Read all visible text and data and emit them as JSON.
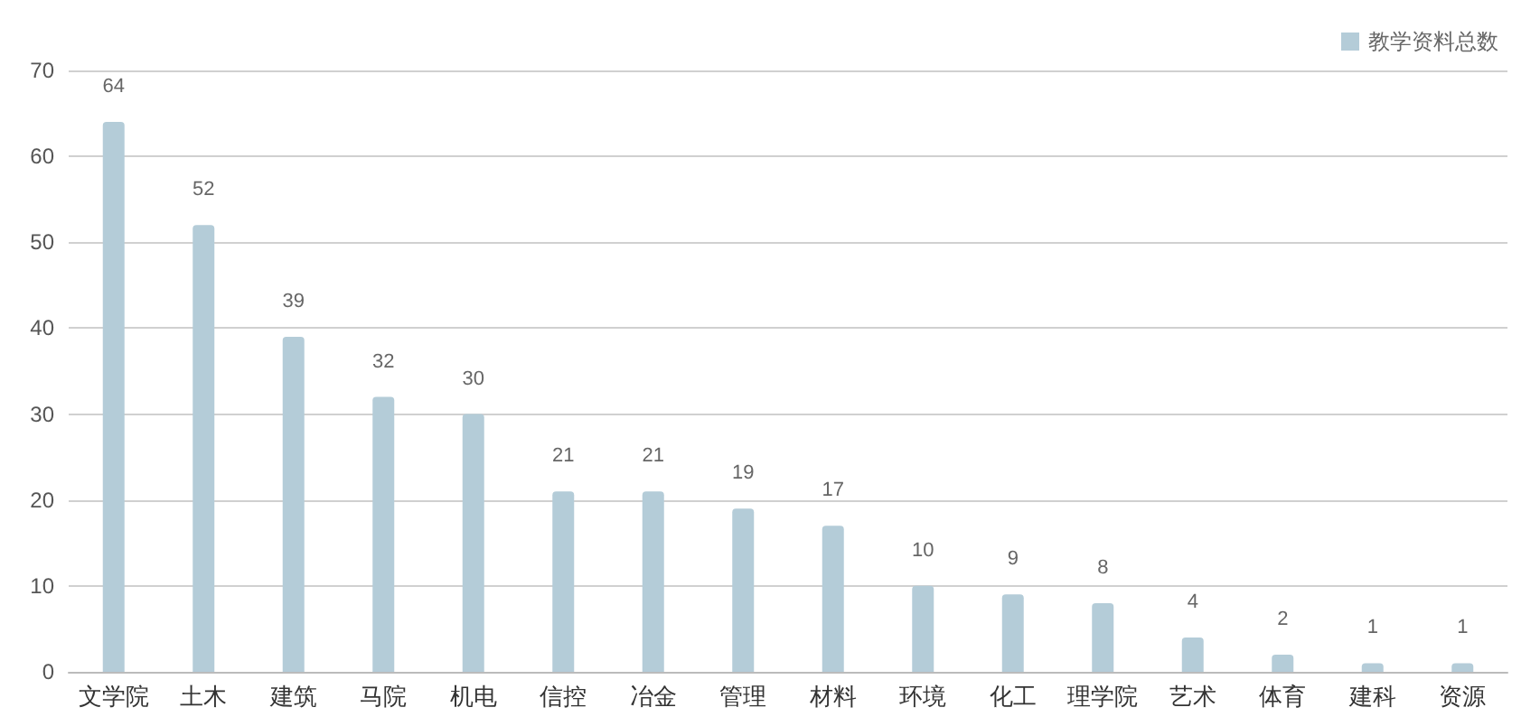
{
  "chart_data": {
    "type": "bar",
    "categories": [
      "文学院",
      "土木",
      "建筑",
      "马院",
      "机电",
      "信控",
      "冶金",
      "管理",
      "材料",
      "环境",
      "化工",
      "理学院",
      "艺术",
      "体育",
      "建科",
      "资源"
    ],
    "series": [
      {
        "name": "教学资料总数",
        "color": "#b4ccd8",
        "values": [
          64,
          52,
          39,
          32,
          30,
          21,
          21,
          19,
          17,
          10,
          9,
          8,
          4,
          2,
          1,
          1
        ]
      }
    ],
    "ylim": [
      0,
      70
    ],
    "yticks": [
      0,
      10,
      20,
      30,
      40,
      50,
      60,
      70
    ],
    "grid": "y",
    "legend": "top right",
    "data_labels": true
  }
}
